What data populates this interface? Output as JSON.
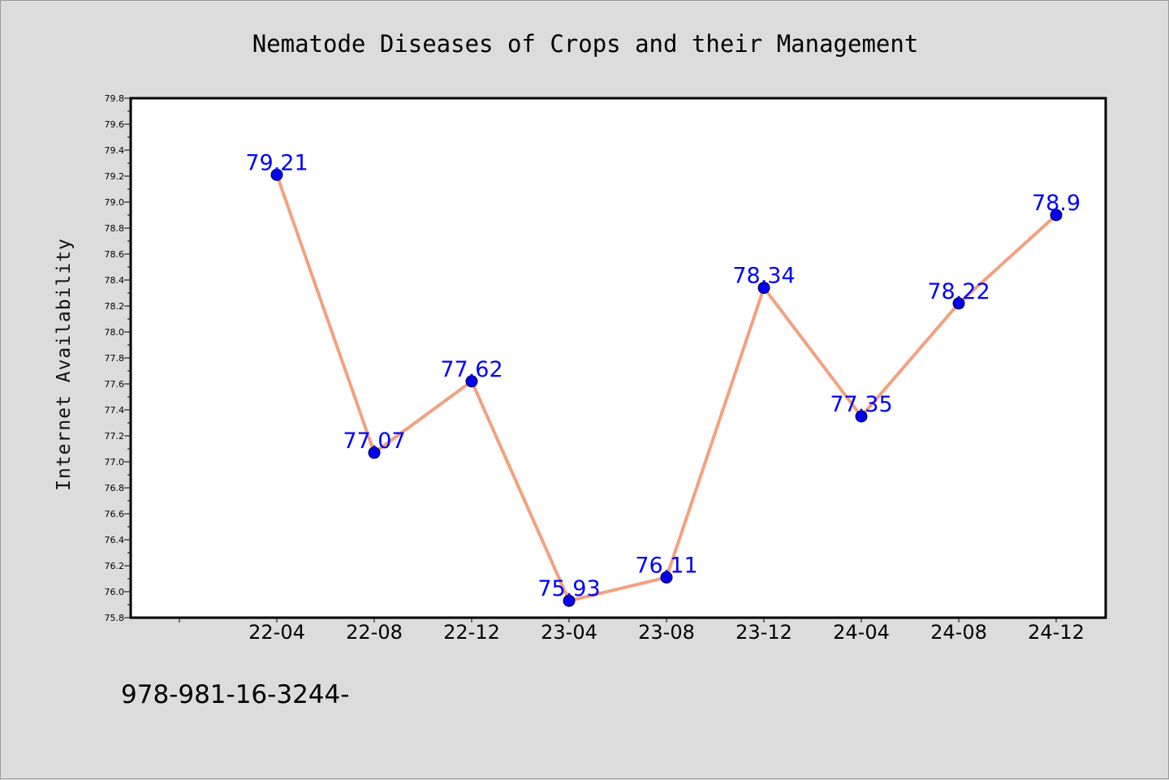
{
  "chart_data": {
    "type": "line",
    "title": "Nematode Diseases of Crops and their Management",
    "xlabel": "",
    "ylabel": "Internet Availability",
    "categories": [
      "22-04",
      "22-08",
      "22-12",
      "23-04",
      "23-08",
      "23-12",
      "24-04",
      "24-08",
      "24-12"
    ],
    "series": [
      {
        "values": [
          79.21,
          77.07,
          77.62,
          75.93,
          76.11,
          78.34,
          77.35,
          78.22,
          78.9
        ],
        "labels": [
          "79.21",
          "77.07",
          "77.62",
          "75.93",
          "76.11",
          "78.34",
          "77.35",
          "78.22",
          "78.9"
        ]
      }
    ],
    "ylim": [
      75.8,
      79.8
    ],
    "yticks": [
      "75.8",
      "76.0",
      "76.2",
      "76.4",
      "76.6",
      "76.8",
      "77.0",
      "77.2",
      "77.4",
      "77.6",
      "77.8",
      "78.0",
      "78.2",
      "78.4",
      "78.6",
      "78.8",
      "79.0",
      "79.2",
      "79.4",
      "79.6",
      "79.8"
    ],
    "grid": false,
    "colors": {
      "line": "#f4a07f",
      "marker": "#0000ee",
      "label": "#0000ff",
      "plot_bg": "#ffffff",
      "page_bg": "#dcdcdc"
    }
  },
  "footnote": "978-981-16-3244-"
}
